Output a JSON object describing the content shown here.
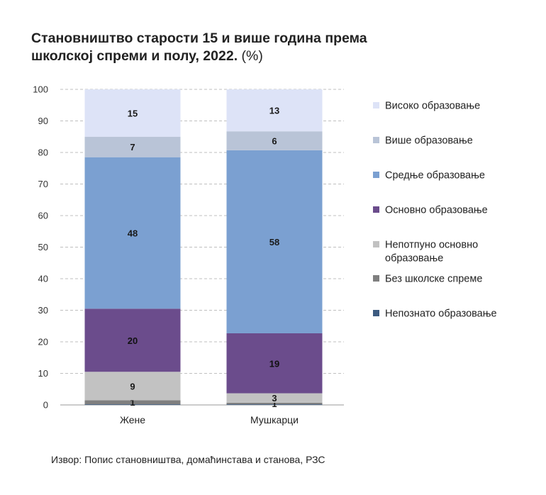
{
  "title": {
    "line1": "Становништво старости 15 и више година према",
    "line2": "школској спреми и полу, 2022.",
    "unit": "(%)"
  },
  "source": "Извор: Попис становништва, домаћинстава и станова, РЗС",
  "colors": {
    "Високо образовање": "#dde3f7",
    "Више образовање": "#b9c4d7",
    "Средње образовање": "#7ba0d1",
    "Основно образовање": "#6b4c8c",
    "Непотпуно основно образовање": "#c2c2c2",
    "Без школске спреме": "#7f7f7f",
    "Непознато образовање": "#3d5b80"
  },
  "chart_data": {
    "type": "bar",
    "stacked": true,
    "categories": [
      "Жене",
      "Мушкарци"
    ],
    "ylim": [
      0,
      100
    ],
    "yticks": [
      0,
      10,
      20,
      30,
      40,
      50,
      60,
      70,
      80,
      90,
      100
    ],
    "grid": true,
    "legend_position": "right",
    "series": [
      {
        "name": "Непознато образовање",
        "values": [
          0.2,
          0.2
        ],
        "labels": [
          "",
          ""
        ]
      },
      {
        "name": "Без школске спреме",
        "values": [
          1.3,
          0.5
        ],
        "labels": [
          "1",
          "1"
        ]
      },
      {
        "name": "Непотпуно основно образовање",
        "values": [
          9,
          3
        ],
        "labels": [
          "9",
          "3"
        ]
      },
      {
        "name": "Основно образовање",
        "values": [
          20,
          19
        ],
        "labels": [
          "20",
          "19"
        ]
      },
      {
        "name": "Средње образовање",
        "values": [
          48,
          58
        ],
        "labels": [
          "48",
          "58"
        ]
      },
      {
        "name": "Више образовање",
        "values": [
          6.5,
          6
        ],
        "labels": [
          "7",
          "6"
        ]
      },
      {
        "name": "Високо образовање",
        "values": [
          15,
          13.3
        ],
        "labels": [
          "15",
          "13"
        ]
      }
    ],
    "legend": [
      {
        "name": "Високо образовање",
        "lines": [
          "Високо образовање"
        ]
      },
      {
        "name": "Више образовање",
        "lines": [
          "Више образовање"
        ]
      },
      {
        "name": "Средње образовање",
        "lines": [
          "Средње образовање"
        ]
      },
      {
        "name": "Основно образовање",
        "lines": [
          "Основно образовање"
        ]
      },
      {
        "name": "Непотпуно основно образовање",
        "lines": [
          "Непотпуно основно",
          "образовање"
        ]
      },
      {
        "name": "Без школске спреме",
        "lines": [
          "Без школске спреме"
        ]
      },
      {
        "name": "Непознато образовање",
        "lines": [
          "Непознато образовање"
        ]
      }
    ]
  }
}
